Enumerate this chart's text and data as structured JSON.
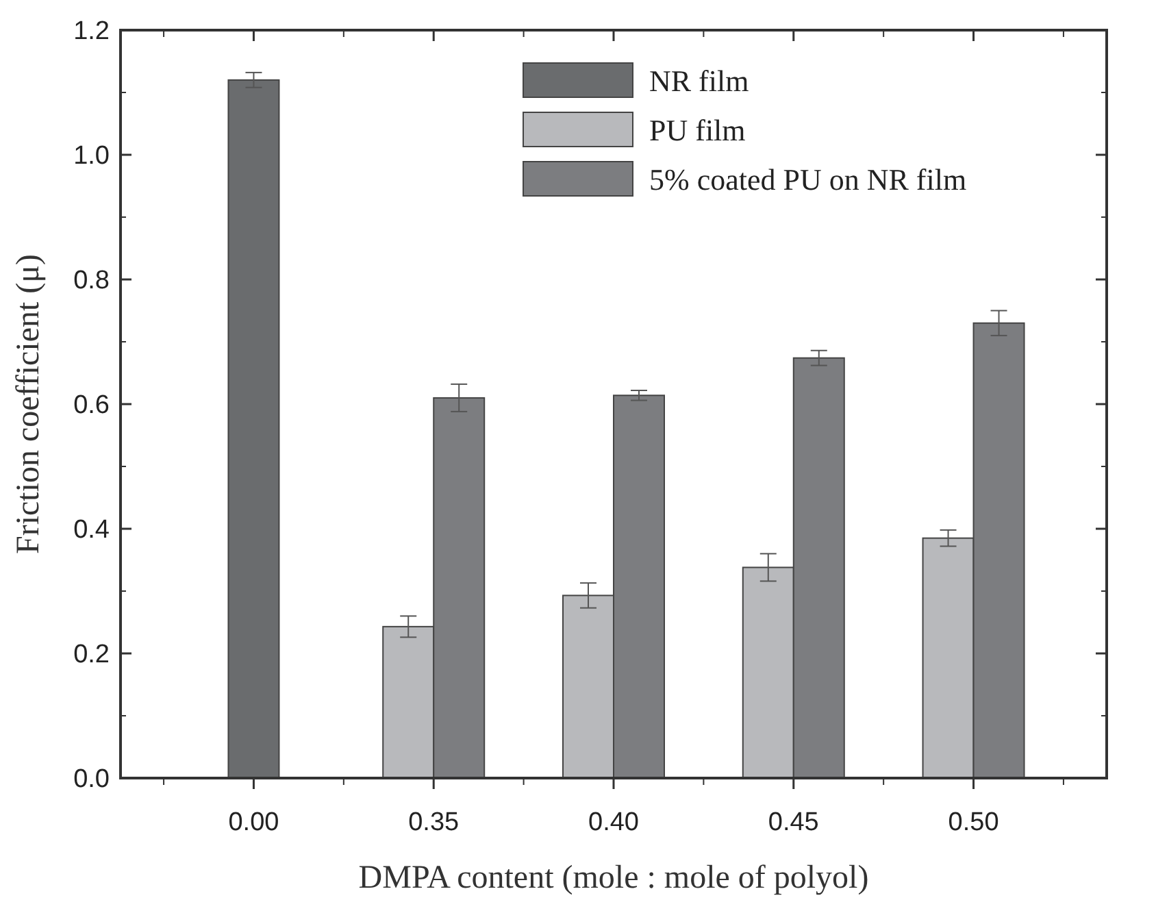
{
  "chart_data": {
    "type": "bar",
    "xlabel": "DMPA content (mole : mole of polyol)",
    "ylabel": "Friction coefficient (μ)",
    "categories": [
      "0.00",
      "0.35",
      "0.40",
      "0.45",
      "0.50"
    ],
    "ylim": [
      0,
      1.2
    ],
    "yticks": [
      {
        "value": 0,
        "label": "0.0"
      },
      0.2,
      0.4,
      0.6,
      0.8,
      {
        "value": 1,
        "label": "1.0"
      },
      1.2
    ],
    "legend": "top right",
    "series": [
      {
        "name": "NR film",
        "color": "#6a6c6e",
        "values": [
          1.12,
          null,
          null,
          null,
          null
        ],
        "errors": [
          0.012,
          null,
          null,
          null,
          null
        ]
      },
      {
        "name": "PU film",
        "color": "#b8b9bc",
        "values": [
          null,
          0.243,
          0.293,
          0.338,
          0.385
        ],
        "errors": [
          null,
          0.017,
          0.02,
          0.022,
          0.013
        ]
      },
      {
        "name": "5% coated PU on NR film",
        "color": "#7c7d80",
        "values": [
          null,
          0.61,
          0.614,
          0.674,
          0.73
        ],
        "errors": [
          null,
          0.022,
          0.008,
          0.012,
          0.02
        ]
      }
    ]
  }
}
